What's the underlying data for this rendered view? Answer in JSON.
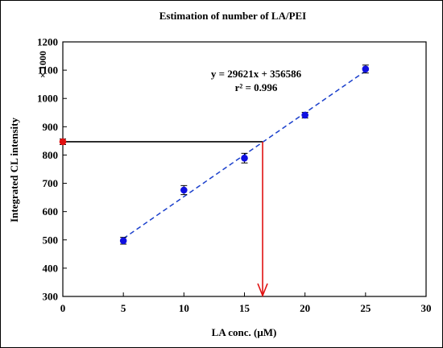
{
  "chart_data": {
    "type": "scatter",
    "title": "Estimation of number of LA/PEI",
    "xlabel": "LA conc. (μM)",
    "ylabel": "Integrated CL intensity",
    "y_multiplier_label": "× 1000",
    "xlim": [
      0,
      30
    ],
    "ylim": [
      300,
      1200
    ],
    "xticks": [
      0,
      5,
      10,
      15,
      20,
      25,
      30
    ],
    "yticks": [
      300,
      400,
      500,
      600,
      700,
      800,
      900,
      1000,
      1100,
      1200
    ],
    "grid": false,
    "series": [
      {
        "marker_color": "#1010e0",
        "x": [
          5,
          10,
          15,
          20,
          25
        ],
        "y": [
          497,
          676,
          789,
          941,
          1104
        ],
        "error": [
          12,
          16,
          17,
          10,
          14
        ]
      }
    ],
    "fit": {
      "equation": "y = 29621x + 356586",
      "r2": "r² = 0.996",
      "slope": 29.621,
      "intercept": 356.586,
      "x_range": [
        5,
        25
      ],
      "color": "#1a3fcc"
    },
    "unknown": {
      "x": 16.5,
      "y": 847,
      "error": 10,
      "marker_color": "#e01010",
      "horizontal_line_color": "#000000",
      "arrow_color": "#e01010"
    }
  }
}
